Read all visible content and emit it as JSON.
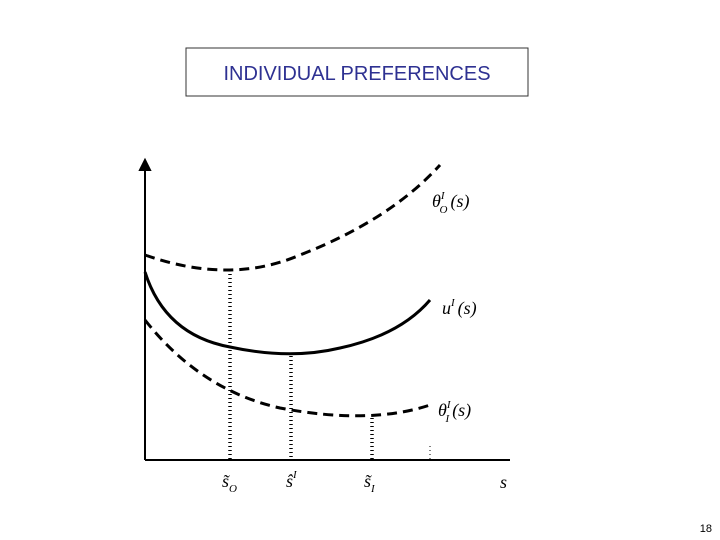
{
  "header": {
    "title": "INDIVIDUAL PREFERENCES"
  },
  "curves": [
    {
      "base": "θ",
      "sup": "I",
      "sub": "O",
      "arg": "(s)"
    },
    {
      "base": "u",
      "sup": "I",
      "arg": "(s)"
    },
    {
      "base": "θ",
      "sup": "I",
      "sub": "I",
      "arg": "(s)"
    }
  ],
  "x_labels": [
    {
      "base": "s̃",
      "sub": "O"
    },
    {
      "base": "ŝ",
      "sup": "I"
    },
    {
      "base": "s̃",
      "sub": "I"
    }
  ],
  "axis_label": "s",
  "page_number": "18"
}
